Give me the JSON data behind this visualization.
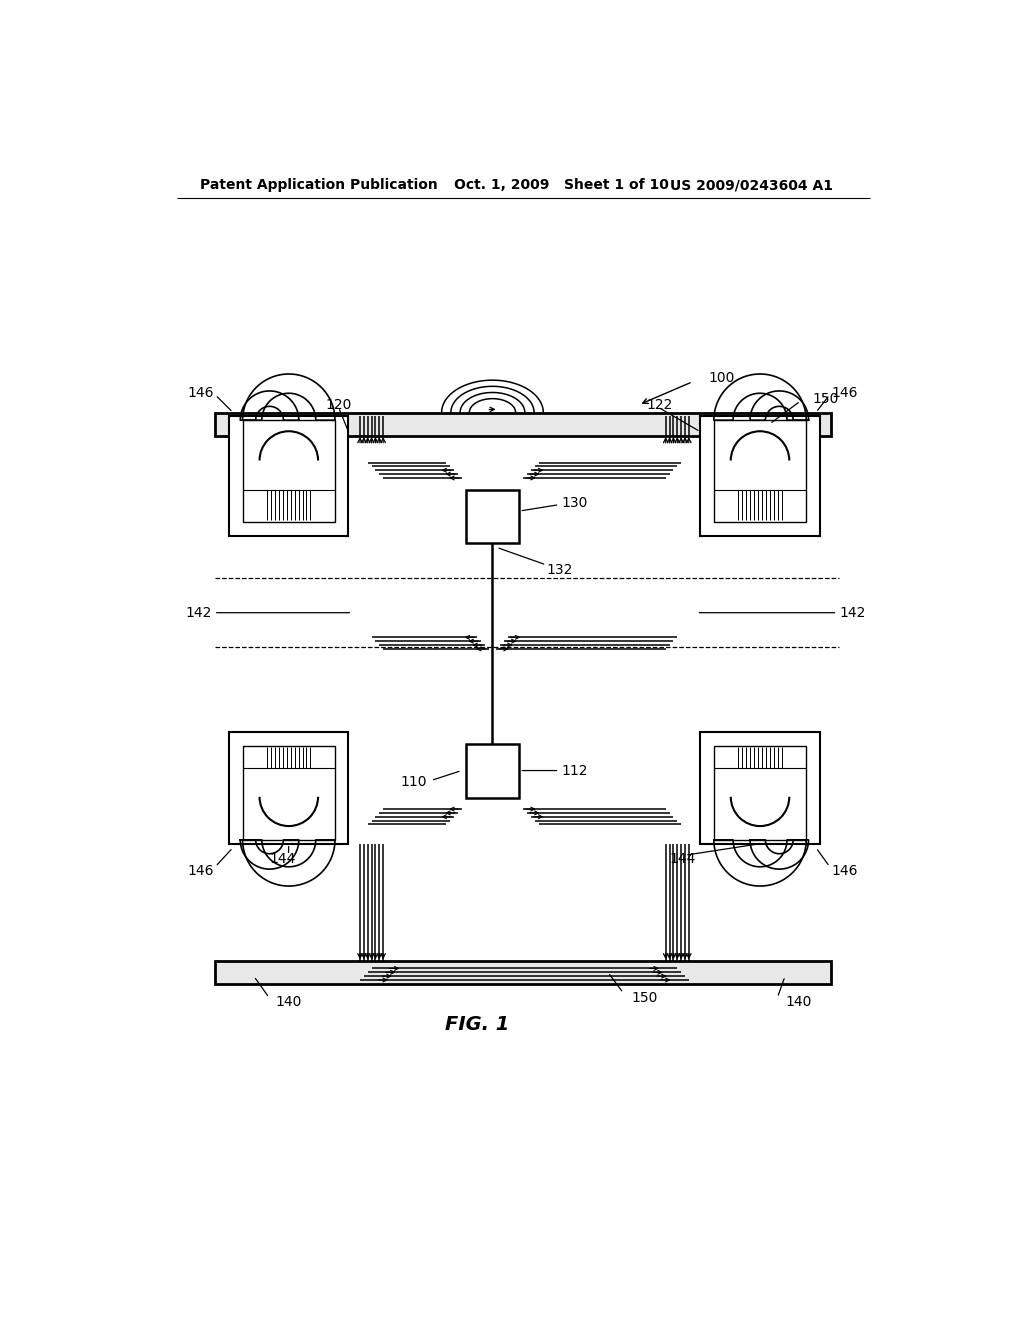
{
  "header_left": "Patent Application Publication",
  "header_mid": "Oct. 1, 2009   Sheet 1 of 10",
  "header_right": "US 2009/0243604 A1",
  "fig_label": "FIG. 1",
  "bg_color": "#ffffff",
  "line_color": "#000000"
}
